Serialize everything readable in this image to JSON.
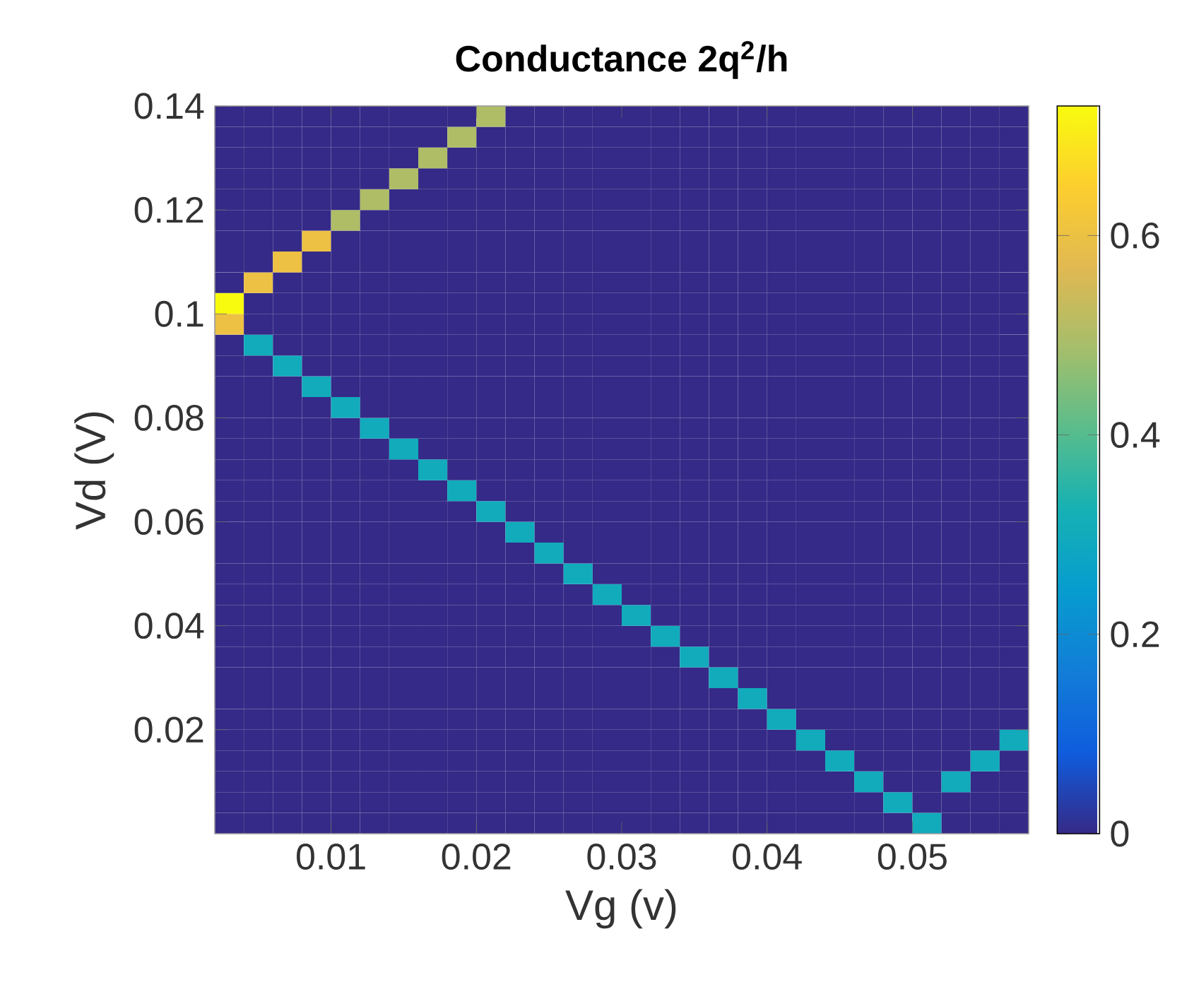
{
  "chart_data": {
    "type": "heatmap",
    "title": "Conductance 2q$^{2}$/h",
    "xlabel": "Vg (v)",
    "ylabel": "Vd (V)",
    "x": [
      0.003,
      0.005,
      0.007,
      0.009,
      0.011,
      0.013,
      0.015,
      0.017,
      0.019,
      0.021,
      0.023,
      0.025,
      0.027,
      0.029,
      0.031,
      0.033,
      0.035,
      0.037,
      0.039,
      0.041,
      0.043,
      0.045,
      0.047,
      0.049,
      0.051,
      0.053,
      0.055,
      0.057
    ],
    "y": [
      0.138,
      0.134,
      0.13,
      0.126,
      0.122,
      0.118,
      0.114,
      0.11,
      0.106,
      0.102,
      0.098,
      0.094,
      0.09,
      0.086,
      0.082,
      0.078,
      0.074,
      0.07,
      0.066,
      0.062,
      0.058,
      0.054,
      0.05,
      0.046,
      0.042,
      0.038,
      0.034,
      0.03,
      0.026,
      0.022,
      0.018,
      0.014,
      0.01,
      0.006,
      0.002
    ],
    "cells": [
      [
        0,
        0,
        0,
        0,
        0,
        0,
        0,
        0,
        0,
        0.5,
        0,
        0,
        0,
        0,
        0,
        0,
        0,
        0,
        0,
        0,
        0,
        0,
        0,
        0,
        0,
        0,
        0,
        0
      ],
      [
        0,
        0,
        0,
        0,
        0,
        0,
        0,
        0,
        0.5,
        0,
        0,
        0,
        0,
        0,
        0,
        0,
        0,
        0,
        0,
        0,
        0,
        0,
        0,
        0,
        0,
        0,
        0,
        0
      ],
      [
        0,
        0,
        0,
        0,
        0,
        0,
        0,
        0.5,
        0,
        0,
        0,
        0,
        0,
        0,
        0,
        0,
        0,
        0,
        0,
        0,
        0,
        0,
        0,
        0,
        0,
        0,
        0,
        0
      ],
      [
        0,
        0,
        0,
        0,
        0,
        0,
        0.5,
        0,
        0,
        0,
        0,
        0,
        0,
        0,
        0,
        0,
        0,
        0,
        0,
        0,
        0,
        0,
        0,
        0,
        0,
        0,
        0,
        0
      ],
      [
        0,
        0,
        0,
        0,
        0,
        0.5,
        0,
        0,
        0,
        0,
        0,
        0,
        0,
        0,
        0,
        0,
        0,
        0,
        0,
        0,
        0,
        0,
        0,
        0,
        0,
        0,
        0,
        0
      ],
      [
        0,
        0,
        0,
        0,
        0.5,
        0,
        0,
        0,
        0,
        0,
        0,
        0,
        0,
        0,
        0,
        0,
        0,
        0,
        0,
        0,
        0,
        0,
        0,
        0,
        0,
        0,
        0,
        0
      ],
      [
        0,
        0,
        0,
        0.6,
        0,
        0,
        0,
        0,
        0,
        0,
        0,
        0,
        0,
        0,
        0,
        0,
        0,
        0,
        0,
        0,
        0,
        0,
        0,
        0,
        0,
        0,
        0,
        0
      ],
      [
        0,
        0,
        0.6,
        0,
        0,
        0,
        0,
        0,
        0,
        0,
        0,
        0,
        0,
        0,
        0,
        0,
        0,
        0,
        0,
        0,
        0,
        0,
        0,
        0,
        0,
        0,
        0,
        0
      ],
      [
        0,
        0.6,
        0,
        0,
        0,
        0,
        0,
        0,
        0,
        0,
        0,
        0,
        0,
        0,
        0,
        0,
        0,
        0,
        0,
        0,
        0,
        0,
        0,
        0,
        0,
        0,
        0,
        0
      ],
      [
        0.73,
        0,
        0,
        0,
        0,
        0,
        0,
        0,
        0,
        0,
        0,
        0,
        0,
        0,
        0,
        0,
        0,
        0,
        0,
        0,
        0,
        0,
        0,
        0,
        0,
        0,
        0,
        0
      ],
      [
        0.6,
        0,
        0,
        0,
        0,
        0,
        0,
        0,
        0,
        0,
        0,
        0,
        0,
        0,
        0,
        0,
        0,
        0,
        0,
        0,
        0,
        0,
        0,
        0,
        0,
        0,
        0,
        0
      ],
      [
        0,
        0.3,
        0,
        0,
        0,
        0,
        0,
        0,
        0,
        0,
        0,
        0,
        0,
        0,
        0,
        0,
        0,
        0,
        0,
        0,
        0,
        0,
        0,
        0,
        0,
        0,
        0,
        0
      ],
      [
        0,
        0,
        0.3,
        0,
        0,
        0,
        0,
        0,
        0,
        0,
        0,
        0,
        0,
        0,
        0,
        0,
        0,
        0,
        0,
        0,
        0,
        0,
        0,
        0,
        0,
        0,
        0,
        0
      ],
      [
        0,
        0,
        0,
        0.3,
        0,
        0,
        0,
        0,
        0,
        0,
        0,
        0,
        0,
        0,
        0,
        0,
        0,
        0,
        0,
        0,
        0,
        0,
        0,
        0,
        0,
        0,
        0,
        0
      ],
      [
        0,
        0,
        0,
        0,
        0.3,
        0,
        0,
        0,
        0,
        0,
        0,
        0,
        0,
        0,
        0,
        0,
        0,
        0,
        0,
        0,
        0,
        0,
        0,
        0,
        0,
        0,
        0,
        0
      ],
      [
        0,
        0,
        0,
        0,
        0,
        0.3,
        0,
        0,
        0,
        0,
        0,
        0,
        0,
        0,
        0,
        0,
        0,
        0,
        0,
        0,
        0,
        0,
        0,
        0,
        0,
        0,
        0,
        0
      ],
      [
        0,
        0,
        0,
        0,
        0,
        0,
        0.3,
        0,
        0,
        0,
        0,
        0,
        0,
        0,
        0,
        0,
        0,
        0,
        0,
        0,
        0,
        0,
        0,
        0,
        0,
        0,
        0,
        0
      ],
      [
        0,
        0,
        0,
        0,
        0,
        0,
        0,
        0.3,
        0,
        0,
        0,
        0,
        0,
        0,
        0,
        0,
        0,
        0,
        0,
        0,
        0,
        0,
        0,
        0,
        0,
        0,
        0,
        0
      ],
      [
        0,
        0,
        0,
        0,
        0,
        0,
        0,
        0,
        0.3,
        0,
        0,
        0,
        0,
        0,
        0,
        0,
        0,
        0,
        0,
        0,
        0,
        0,
        0,
        0,
        0,
        0,
        0,
        0
      ],
      [
        0,
        0,
        0,
        0,
        0,
        0,
        0,
        0,
        0,
        0.3,
        0,
        0,
        0,
        0,
        0,
        0,
        0,
        0,
        0,
        0,
        0,
        0,
        0,
        0,
        0,
        0,
        0,
        0
      ],
      [
        0,
        0,
        0,
        0,
        0,
        0,
        0,
        0,
        0,
        0,
        0.3,
        0,
        0,
        0,
        0,
        0,
        0,
        0,
        0,
        0,
        0,
        0,
        0,
        0,
        0,
        0,
        0,
        0
      ],
      [
        0,
        0,
        0,
        0,
        0,
        0,
        0,
        0,
        0,
        0,
        0,
        0.3,
        0,
        0,
        0,
        0,
        0,
        0,
        0,
        0,
        0,
        0,
        0,
        0,
        0,
        0,
        0,
        0
      ],
      [
        0,
        0,
        0,
        0,
        0,
        0,
        0,
        0,
        0,
        0,
        0,
        0,
        0.3,
        0,
        0,
        0,
        0,
        0,
        0,
        0,
        0,
        0,
        0,
        0,
        0,
        0,
        0,
        0
      ],
      [
        0,
        0,
        0,
        0,
        0,
        0,
        0,
        0,
        0,
        0,
        0,
        0,
        0,
        0.3,
        0,
        0,
        0,
        0,
        0,
        0,
        0,
        0,
        0,
        0,
        0,
        0,
        0,
        0
      ],
      [
        0,
        0,
        0,
        0,
        0,
        0,
        0,
        0,
        0,
        0,
        0,
        0,
        0,
        0,
        0.3,
        0,
        0,
        0,
        0,
        0,
        0,
        0,
        0,
        0,
        0,
        0,
        0,
        0
      ],
      [
        0,
        0,
        0,
        0,
        0,
        0,
        0,
        0,
        0,
        0,
        0,
        0,
        0,
        0,
        0,
        0.3,
        0,
        0,
        0,
        0,
        0,
        0,
        0,
        0,
        0,
        0,
        0,
        0
      ],
      [
        0,
        0,
        0,
        0,
        0,
        0,
        0,
        0,
        0,
        0,
        0,
        0,
        0,
        0,
        0,
        0,
        0.3,
        0,
        0,
        0,
        0,
        0,
        0,
        0,
        0,
        0,
        0,
        0
      ],
      [
        0,
        0,
        0,
        0,
        0,
        0,
        0,
        0,
        0,
        0,
        0,
        0,
        0,
        0,
        0,
        0,
        0,
        0.3,
        0,
        0,
        0,
        0,
        0,
        0,
        0,
        0,
        0,
        0
      ],
      [
        0,
        0,
        0,
        0,
        0,
        0,
        0,
        0,
        0,
        0,
        0,
        0,
        0,
        0,
        0,
        0,
        0,
        0,
        0.3,
        0,
        0,
        0,
        0,
        0,
        0,
        0,
        0,
        0
      ],
      [
        0,
        0,
        0,
        0,
        0,
        0,
        0,
        0,
        0,
        0,
        0,
        0,
        0,
        0,
        0,
        0,
        0,
        0,
        0,
        0.3,
        0,
        0,
        0,
        0,
        0,
        0,
        0,
        0
      ],
      [
        0,
        0,
        0,
        0,
        0,
        0,
        0,
        0,
        0,
        0,
        0,
        0,
        0,
        0,
        0,
        0,
        0,
        0,
        0,
        0,
        0.3,
        0,
        0,
        0,
        0,
        0,
        0,
        0.3
      ],
      [
        0,
        0,
        0,
        0,
        0,
        0,
        0,
        0,
        0,
        0,
        0,
        0,
        0,
        0,
        0,
        0,
        0,
        0,
        0,
        0,
        0,
        0.3,
        0,
        0,
        0,
        0,
        0.3,
        0
      ],
      [
        0,
        0,
        0,
        0,
        0,
        0,
        0,
        0,
        0,
        0,
        0,
        0,
        0,
        0,
        0,
        0,
        0,
        0,
        0,
        0,
        0,
        0,
        0.3,
        0,
        0,
        0.3,
        0,
        0
      ],
      [
        0,
        0,
        0,
        0,
        0,
        0,
        0,
        0,
        0,
        0,
        0,
        0,
        0,
        0,
        0,
        0,
        0,
        0,
        0,
        0,
        0,
        0,
        0,
        0.3,
        0,
        0,
        0,
        0
      ],
      [
        0,
        0,
        0,
        0,
        0,
        0,
        0,
        0,
        0,
        0,
        0,
        0,
        0,
        0,
        0,
        0,
        0,
        0,
        0,
        0,
        0,
        0,
        0,
        0,
        0.3,
        0,
        0,
        0
      ]
    ],
    "xlim": [
      0.002,
      0.058
    ],
    "ylim": [
      0,
      0.14
    ],
    "xticks": [
      0.01,
      0.02,
      0.03,
      0.04,
      0.05
    ],
    "yticks": [
      0.02,
      0.04,
      0.06,
      0.08,
      0.1,
      0.12,
      0.14
    ],
    "clim": [
      0,
      0.73
    ],
    "cticks": [
      0,
      0.2,
      0.4,
      0.6
    ]
  }
}
